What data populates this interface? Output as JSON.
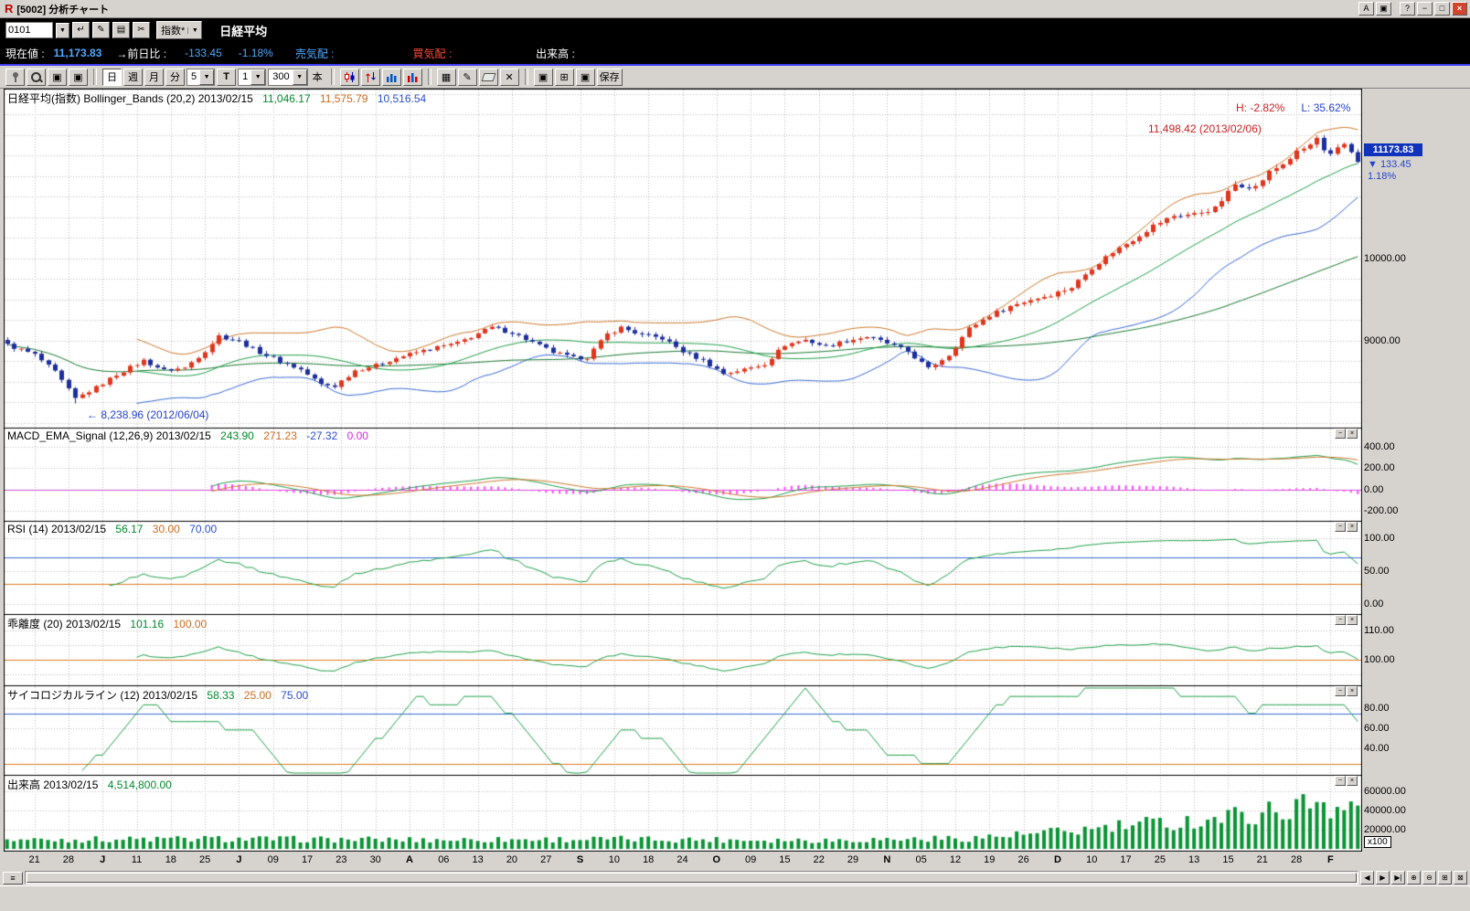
{
  "window": {
    "title": "[5002] 分析チャート",
    "buttons": {
      "a": "A",
      "help": "?"
    }
  },
  "icons": {
    "logo": "R",
    "pages": "▣",
    "minimize": "−",
    "maximize": "□",
    "close": "×",
    "close_box": "⊠",
    "dropdown": "▼",
    "enter": "↵",
    "pencil": "✎",
    "list": "▤",
    "scissors": "✂",
    "grid": "▦",
    "delete": "✕",
    "layout": "▣",
    "grip": "≡",
    "prev": "◀",
    "next": "▶",
    "end": "▶|",
    "zoom_in": "⊕",
    "zoom_out": "⊖",
    "tile": "⊞"
  },
  "symbol_row": {
    "code_input": "0101",
    "category_dropdown": "指数*",
    "symbol_name": "日経平均"
  },
  "quote_row": {
    "labels": {
      "current": "現在値 :",
      "change": "→前日比 :",
      "ask": "売気配 :",
      "bid": "買気配 :",
      "volume": "出来高 :"
    },
    "current_value": "11,173.83",
    "change_value": "-133.45",
    "change_pct": "-1.18%"
  },
  "toolbar": {
    "periods": [
      "日",
      "週",
      "月",
      "分"
    ],
    "period_param": "5",
    "t_label": "T",
    "t_value": "1",
    "bars_value": "300",
    "bars_unit": "本",
    "save_label": "保存"
  },
  "panels": {
    "main": {
      "title": "日経平均(指数) Bollinger_Bands (20,2) 2013/02/15",
      "mid": "11,046.17",
      "upper": "11,575.79",
      "lower": "10,516.54"
    },
    "macd": {
      "title": "MACD_EMA_Signal (12,26,9) 2013/02/15",
      "macd": "243.90",
      "signal": "271.23",
      "diff": "-27.32",
      "zero": "0.00"
    },
    "rsi": {
      "title": "RSI (14) 2013/02/15",
      "value": "56.17",
      "lower": "30.00",
      "upper": "70.00"
    },
    "kairi": {
      "title": "乖離度 (20) 2013/02/15",
      "value": "101.16",
      "base": "100.00"
    },
    "psych": {
      "title": "サイコロジカルライン (12) 2013/02/15",
      "value": "58.33",
      "lower": "25.00",
      "upper": "75.00"
    },
    "volume": {
      "title": "出来高 2013/02/15",
      "value": "4,514,800.00",
      "unit": "x100"
    }
  },
  "price_tag": {
    "value": "11173.83",
    "change": "▼ 133.45",
    "pct": "1.18%"
  },
  "chart_data": {
    "type": "candlestick",
    "bars": 199,
    "label_start_index": 4,
    "label_step": 5,
    "x_labels": [
      "21",
      "28",
      "J",
      "11",
      "18",
      "25",
      "J",
      "09",
      "17",
      "23",
      "30",
      "A",
      "06",
      "13",
      "20",
      "27",
      "S",
      "10",
      "18",
      "24",
      "O",
      "09",
      "15",
      "22",
      "29",
      "N",
      "05",
      "12",
      "19",
      "26",
      "D",
      "10",
      "17",
      "25",
      "13",
      "15",
      "21",
      "28",
      "F"
    ],
    "axes": {
      "main": [
        {
          "v": 10000,
          "label": "10000.00"
        },
        {
          "v": 9000,
          "label": "9000.00"
        }
      ],
      "macd": [
        {
          "v": 400,
          "label": "400.00"
        },
        {
          "v": 200,
          "label": "200.00"
        },
        {
          "v": 0,
          "label": "0.00"
        },
        {
          "v": -200,
          "label": "-200.00"
        }
      ],
      "rsi": [
        {
          "v": 100,
          "label": "100.00"
        },
        {
          "v": 50,
          "label": "50.00"
        },
        {
          "v": 0,
          "label": "0.00"
        }
      ],
      "kairi": [
        {
          "v": 110,
          "label": "110.00"
        },
        {
          "v": 100,
          "label": "100.00"
        }
      ],
      "psych": [
        {
          "v": 80,
          "label": "80.00"
        },
        {
          "v": 60,
          "label": "60.00"
        },
        {
          "v": 40,
          "label": "40.00"
        }
      ],
      "vol": [
        {
          "v": 60000,
          "label": "60000.00"
        },
        {
          "v": 40000,
          "label": "40000.00"
        },
        {
          "v": 20000,
          "label": "20000.00"
        }
      ]
    },
    "reference_lines": {
      "macd_zero": 0,
      "rsi_upper": 70,
      "rsi_lower": 30,
      "kairi_base": 100,
      "psych_upper": 75,
      "psych_lower": 25
    },
    "key_points": {
      "high": {
        "index": 192,
        "value": 11498.42,
        "label": "11,498.42 (2013/02/06)"
      },
      "low": {
        "index": 10,
        "value": 8238.96,
        "label": "← 8,238.96 (2012/06/04)"
      },
      "last_close": 11173.83,
      "last_volume_x100": 45148,
      "high_pct_label": "H: -2.82%",
      "low_pct_label": "L: 35.62%"
    },
    "indicators": {
      "bollinger": [
        20,
        2
      ],
      "sma_long": 75,
      "macd": [
        12,
        26,
        9
      ],
      "rsi": 14,
      "kairi": 20,
      "psych": 12
    },
    "price_anchors": [
      [
        0,
        8950
      ],
      [
        4,
        8830
      ],
      [
        7,
        8620
      ],
      [
        10,
        8295
      ],
      [
        13,
        8430
      ],
      [
        16,
        8590
      ],
      [
        20,
        8760
      ],
      [
        23,
        8640
      ],
      [
        26,
        8670
      ],
      [
        29,
        8880
      ],
      [
        31,
        9060
      ],
      [
        34,
        8990
      ],
      [
        37,
        8860
      ],
      [
        40,
        8750
      ],
      [
        43,
        8650
      ],
      [
        46,
        8470
      ],
      [
        48,
        8450
      ],
      [
        51,
        8640
      ],
      [
        54,
        8700
      ],
      [
        57,
        8790
      ],
      [
        60,
        8860
      ],
      [
        63,
        8920
      ],
      [
        66,
        8970
      ],
      [
        69,
        9090
      ],
      [
        71,
        9160
      ],
      [
        74,
        9100
      ],
      [
        77,
        8980
      ],
      [
        80,
        8860
      ],
      [
        83,
        8790
      ],
      [
        85,
        8800
      ],
      [
        88,
        9080
      ],
      [
        90,
        9160
      ],
      [
        93,
        9070
      ],
      [
        96,
        9030
      ],
      [
        99,
        8870
      ],
      [
        102,
        8760
      ],
      [
        105,
        8600
      ],
      [
        108,
        8650
      ],
      [
        111,
        8720
      ],
      [
        114,
        8950
      ],
      [
        117,
        9010
      ],
      [
        120,
        8930
      ],
      [
        123,
        9000
      ],
      [
        126,
        9050
      ],
      [
        129,
        8970
      ],
      [
        132,
        8870
      ],
      [
        135,
        8660
      ],
      [
        138,
        8830
      ],
      [
        141,
        9150
      ],
      [
        144,
        9310
      ],
      [
        147,
        9420
      ],
      [
        150,
        9500
      ],
      [
        153,
        9560
      ],
      [
        156,
        9650
      ],
      [
        159,
        9890
      ],
      [
        162,
        10080
      ],
      [
        165,
        10230
      ],
      [
        168,
        10400
      ],
      [
        171,
        10520
      ],
      [
        174,
        10540
      ],
      [
        177,
        10610
      ],
      [
        180,
        10900
      ],
      [
        183,
        10870
      ],
      [
        185,
        11050
      ],
      [
        187,
        11150
      ],
      [
        189,
        11290
      ],
      [
        191,
        11380
      ],
      [
        192,
        11463
      ],
      [
        193,
        11300
      ],
      [
        194,
        11250
      ],
      [
        195,
        11330
      ],
      [
        196,
        11390
      ],
      [
        197,
        11300
      ],
      [
        198,
        11173.83
      ]
    ],
    "volume_anchors": [
      [
        0,
        9500
      ],
      [
        30,
        10500
      ],
      [
        60,
        9500
      ],
      [
        90,
        10200
      ],
      [
        120,
        9200
      ],
      [
        140,
        11000
      ],
      [
        150,
        15000
      ],
      [
        160,
        21000
      ],
      [
        168,
        26000
      ],
      [
        175,
        30000
      ],
      [
        182,
        36000
      ],
      [
        188,
        42000
      ],
      [
        192,
        50000
      ],
      [
        195,
        46000
      ],
      [
        198,
        45148
      ]
    ],
    "colors": {
      "up": "#e1351d",
      "down": "#1d2f9e",
      "ma": "#21a14b",
      "ma_long": "#1b7a33",
      "band_upper": "#cd7b2f",
      "band_lower": "#3a6cd4",
      "macd_line": "#21a14b",
      "signal_line": "#cd7b2f",
      "hist": "#ff44ff",
      "zero_line": "#d24fd2",
      "indicator_line": "#21a14b",
      "line_blue": "#3a6cd4",
      "line_orange": "#dd7a1e",
      "volume": "#0a9434",
      "grid": "#bdbdbd"
    }
  }
}
